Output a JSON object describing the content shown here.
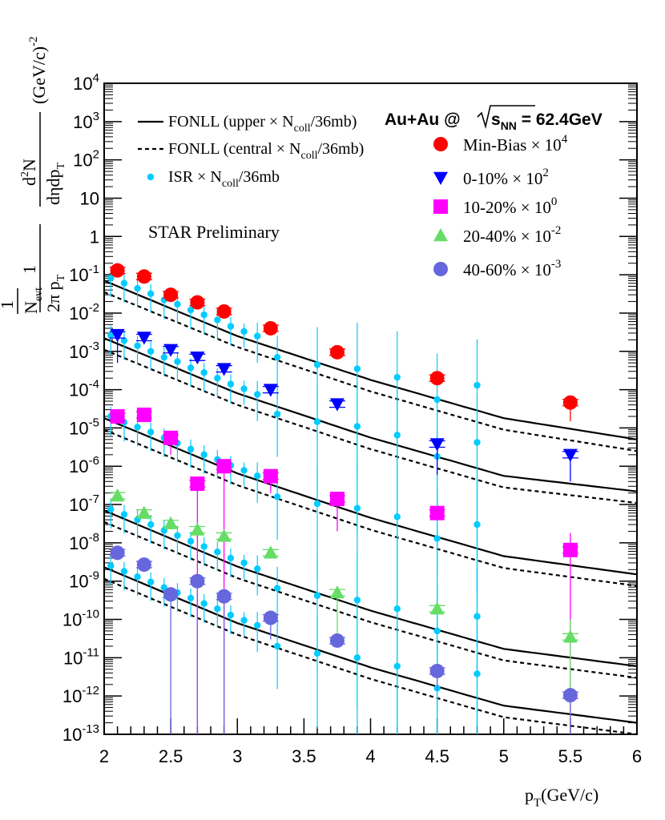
{
  "chart_data": {
    "type": "scatter",
    "yscale": "log",
    "xlim": [
      2,
      6
    ],
    "ylim": [
      1e-13,
      10000
    ],
    "x_ticks": [
      "2",
      "2.5",
      "3",
      "3.5",
      "4",
      "4.5",
      "5",
      "5.5",
      "6"
    ],
    "y_exponents": [
      -13,
      -12,
      -11,
      -10,
      -9,
      -8,
      -7,
      -6,
      -5,
      -4,
      -3,
      -2,
      -1,
      0,
      1,
      2,
      3,
      4
    ],
    "xlabel": {
      "main": "p",
      "sub": "T",
      "tail": "(GeV/c)"
    },
    "ylabel": {
      "one": "1",
      "nevt": "N",
      "nevt_sub": "evt",
      "twopi": "2π p",
      "twopi_sub": "T",
      "d2n": "d",
      "d2n_sup": "2",
      "d2n_tail": "N",
      "deta": "dηdp",
      "deta_sub": "T",
      "units": "(GeV/c)",
      "units_sup": "-2"
    },
    "system_label": {
      "prefix": "Au+Au @ ",
      "s": "s",
      "sub": "NN",
      "suffix": " = 62.4GeV"
    },
    "preliminary": "STAR Preliminary",
    "model_legend": [
      {
        "style": "solid",
        "text": "FONLL (upper × N",
        "sub": "coll",
        "tail": "/36mb)"
      },
      {
        "style": "dashed",
        "text": "FONLL (central × N",
        "sub": "coll",
        "tail": "/36mb)"
      },
      {
        "style": "isr",
        "text": "ISR × N",
        "sub": "coll",
        "tail": "/36mb"
      }
    ],
    "series": [
      {
        "name": "Min-Bias",
        "label": "Min-Bias × 10",
        "exp": "4",
        "color": "#ff0000",
        "marker": "circle",
        "x": [
          2.1,
          2.3,
          2.5,
          2.7,
          2.9,
          3.25,
          3.75,
          4.5,
          5.5
        ],
        "y": [
          0.13,
          0.09,
          0.03,
          0.019,
          0.011,
          0.004,
          0.00095,
          0.0002,
          4.6e-05
        ],
        "lo": [
          null,
          null,
          null,
          null,
          null,
          null,
          null,
          null,
          1.5e-05
        ],
        "hi": [
          null,
          null,
          null,
          null,
          null,
          null,
          null,
          null,
          null
        ]
      },
      {
        "name": "0-10%",
        "label": "0-10% × 10",
        "exp": "2",
        "color": "#0000ff",
        "marker": "triangle-down",
        "x": [
          2.1,
          2.3,
          2.5,
          2.7,
          2.9,
          3.25,
          3.75,
          4.5,
          5.5
        ],
        "y": [
          0.0027,
          0.0023,
          0.0011,
          0.0007,
          0.00035,
          0.0001,
          4.2e-05,
          3.8e-06,
          2e-06
        ],
        "lo": [
          0.0005,
          null,
          null,
          null,
          null,
          null,
          null,
          6e-07,
          4e-07
        ],
        "hi": [
          null,
          null,
          null,
          null,
          null,
          null,
          null,
          null,
          null
        ]
      },
      {
        "name": "10-20%",
        "label": "10-20% × 10",
        "exp": "0",
        "color": "#ff00ff",
        "marker": "square",
        "x": [
          2.1,
          2.3,
          2.5,
          2.7,
          2.9,
          3.25,
          3.75,
          4.5,
          5.5
        ],
        "y": [
          2e-05,
          2.2e-05,
          5.5e-06,
          3.5e-07,
          1e-06,
          5.5e-07,
          1.4e-07,
          6e-08,
          6.5e-09
        ],
        "lo": [
          null,
          null,
          2e-06,
          1e-13,
          1e-13,
          2e-07,
          2e-08,
          null,
          1e-13
        ],
        "hi": [
          null,
          null,
          null,
          null,
          null,
          null,
          null,
          null,
          1.8e-08
        ]
      },
      {
        "name": "20-40%",
        "label": "20-40% × 10",
        "exp": "-2",
        "color": "#66dd66",
        "marker": "triangle-up",
        "x": [
          2.1,
          2.3,
          2.5,
          2.7,
          2.9,
          3.25,
          3.75,
          4.5,
          5.5
        ],
        "y": [
          1.7e-07,
          6e-08,
          3.2e-08,
          2.2e-08,
          1.5e-08,
          5.5e-09,
          5e-10,
          1.9e-10,
          3.5e-11
        ],
        "lo": [
          null,
          null,
          null,
          null,
          null,
          null,
          2.5e-11,
          null,
          1e-13
        ],
        "hi": [
          null,
          null,
          null,
          null,
          null,
          null,
          null,
          null,
          1e-10
        ]
      },
      {
        "name": "40-60%",
        "label": "40-60% × 10",
        "exp": "-3",
        "color": "#6666dd",
        "marker": "circle",
        "x": [
          2.1,
          2.3,
          2.5,
          2.7,
          2.9,
          3.25,
          3.75,
          4.5,
          5.5
        ],
        "y": [
          5.5e-09,
          2.7e-09,
          4.5e-10,
          1e-09,
          4e-10,
          1.1e-10,
          2.8e-11,
          4.5e-12,
          1.05e-12
        ],
        "lo": [
          null,
          null,
          1e-13,
          1e-13,
          1e-13,
          3e-11,
          null,
          1.5e-12,
          1e-13
        ],
        "hi": [
          null,
          null,
          null,
          null,
          null,
          null,
          null,
          null,
          null
        ]
      }
    ],
    "fonll_curves": [
      {
        "series": "Min-Bias",
        "upper": [
          0.07,
          0.0025,
          0.00018,
          1.8e-05,
          5e-06
        ],
        "central": [
          0.035,
          0.0013,
          9e-05,
          9e-06,
          2.5e-06
        ]
      },
      {
        "series": "0-10%",
        "upper": [
          0.0022,
          8e-05,
          5.6e-06,
          5.6e-07,
          2.2e-07
        ],
        "central": [
          0.0011,
          4e-05,
          2.8e-06,
          2.8e-07,
          1.1e-07
        ]
      },
      {
        "series": "10-20%",
        "upper": [
          1.8e-05,
          6.5e-07,
          4.5e-08,
          4.5e-09,
          1.5e-09
        ],
        "central": [
          9e-06,
          3.2e-07,
          2.2e-08,
          2.2e-09,
          7.5e-10
        ]
      },
      {
        "series": "20-40%",
        "upper": [
          7e-08,
          2.4e-09,
          1.7e-10,
          1.7e-11,
          6e-12
        ],
        "central": [
          3.5e-08,
          1.2e-09,
          8.5e-11,
          8.5e-12,
          3e-12
        ]
      },
      {
        "series": "40-60%",
        "upper": [
          2.3e-09,
          8e-11,
          5.6e-12,
          5.6e-13,
          2e-13
        ],
        "central": [
          1.15e-09,
          4e-11,
          2.8e-12,
          2.8e-13,
          1e-13
        ]
      }
    ],
    "fonll_x": [
      2,
      3,
      4,
      5,
      6
    ],
    "isr_color": "#00ccff",
    "isr": [
      {
        "x": 2.05,
        "y": [
          0.082,
          0.0026,
          2e-05,
          7.5e-08,
          2.5e-09
        ]
      },
      {
        "x": 2.15,
        "y": [
          0.06,
          0.0019,
          1.4e-05,
          5.5e-08,
          1.8e-09
        ]
      },
      {
        "x": 2.25,
        "y": [
          0.044,
          0.0014,
          1.05e-05,
          4e-08,
          1.3e-09
        ]
      },
      {
        "x": 2.35,
        "y": [
          0.032,
          0.001,
          7.8e-06,
          3e-08,
          9.5e-10
        ]
      },
      {
        "x": 2.45,
        "y": [
          0.022,
          0.0007,
          5.5e-06,
          2.1e-08,
          6.8e-10
        ]
      },
      {
        "x": 2.55,
        "y": [
          0.017,
          0.00054,
          4e-06,
          1.55e-08,
          5e-10
        ]
      },
      {
        "x": 2.65,
        "y": [
          0.012,
          0.00037,
          2.8e-06,
          1.1e-08,
          3.6e-10
        ]
      },
      {
        "x": 2.75,
        "y": [
          0.009,
          0.00028,
          2e-06,
          8e-09,
          2.6e-10
        ]
      },
      {
        "x": 2.85,
        "y": [
          0.0066,
          0.0002,
          1.5e-06,
          5.8e-09,
          1.9e-10
        ]
      },
      {
        "x": 2.95,
        "y": [
          0.0045,
          0.00014,
          1.05e-06,
          4e-09,
          1.3e-10
        ]
      },
      {
        "x": 3.05,
        "y": [
          0.0033,
          0.000105,
          7.8e-07,
          3e-09,
          9.5e-11
        ]
      },
      {
        "x": 3.15,
        "y": [
          0.0025,
          7.5e-05,
          5.6e-07,
          2.1e-09,
          7e-11
        ]
      },
      {
        "x": 3.3,
        "y": [
          0.0007,
          2.3e-05,
          1.6e-07,
          6.5e-10,
          2e-11
        ]
      },
      {
        "x": 3.6,
        "y": [
          0.00045,
          1.45e-05,
          1.05e-07,
          4.2e-10,
          1.3e-11
        ]
      },
      {
        "x": 3.9,
        "y": [
          0.00035,
          1.1e-05,
          8e-08,
          3.2e-10,
          1e-11
        ]
      },
      {
        "x": 4.2,
        "y": [
          0.00021,
          6.5e-06,
          4.8e-08,
          1.9e-10,
          6e-12
        ]
      },
      {
        "x": 4.5,
        "y": [
          5.5e-05,
          1.8e-06,
          1.3e-08,
          5e-11,
          1.6e-12
        ]
      },
      {
        "x": 4.8,
        "y": [
          0.00013,
          4.2e-06,
          3e-08,
          1.2e-10,
          3.8e-12
        ]
      }
    ]
  }
}
